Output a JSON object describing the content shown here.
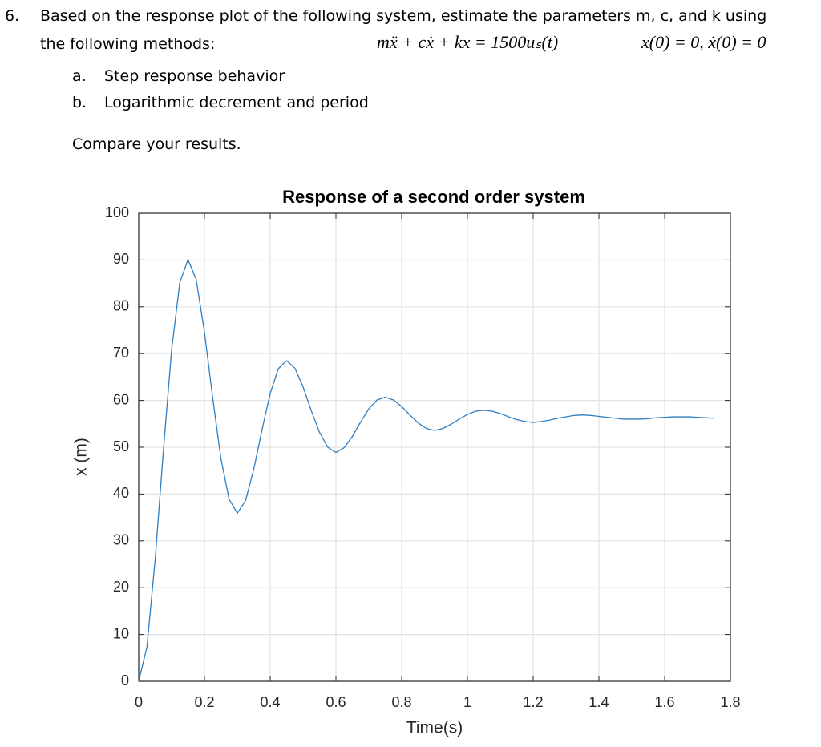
{
  "problem": {
    "number": "6.",
    "line1": "Based on the response plot of the following system, estimate the parameters m, c, and k using",
    "line2": "the following methods:",
    "equation": "mẍ + cẋ + kx = 1500uₛ(t)",
    "initial_conditions": "x(0) = 0,  ẋ(0) = 0",
    "items": [
      {
        "label": "a.",
        "text": "Step response behavior"
      },
      {
        "label": "b.",
        "text": "Logarithmic decrement and period"
      }
    ],
    "closing": "Compare your results."
  },
  "chart_data": {
    "type": "line",
    "title": "Response of a second order system",
    "x_label": "Time(s)",
    "y_label": "x (m)",
    "color": "#2f7ec1",
    "grid": true,
    "xlim": [
      0,
      1.8
    ],
    "xticks": [
      0,
      0.2,
      0.4,
      0.6,
      0.8,
      1,
      1.2,
      1.4,
      1.6,
      1.8
    ],
    "ylim": [
      0,
      100
    ],
    "yticks": [
      0,
      10,
      20,
      30,
      40,
      50,
      60,
      70,
      80,
      90,
      100
    ],
    "x": [
      0,
      0.025,
      0.05,
      0.075,
      0.1,
      0.125,
      0.15,
      0.175,
      0.2,
      0.225,
      0.25,
      0.275,
      0.3,
      0.325,
      0.35,
      0.375,
      0.4,
      0.425,
      0.45,
      0.475,
      0.5,
      0.525,
      0.55,
      0.575,
      0.6,
      0.625,
      0.65,
      0.675,
      0.7,
      0.725,
      0.75,
      0.775,
      0.8,
      0.825,
      0.85,
      0.875,
      0.9,
      0.925,
      0.95,
      0.975,
      1,
      1.025,
      1.05,
      1.075,
      1.1,
      1.125,
      1.15,
      1.175,
      1.2,
      1.225,
      1.25,
      1.275,
      1.3,
      1.325,
      1.35,
      1.375,
      1.4,
      1.425,
      1.45,
      1.475,
      1.5,
      1.525,
      1.55,
      1.575,
      1.6,
      1.625,
      1.65,
      1.675,
      1.7,
      1.725,
      1.75
    ],
    "values": [
      0,
      7.3,
      25.9,
      49.2,
      70.7,
      85.2,
      90.1,
      85.8,
      74.6,
      60.6,
      47.6,
      38.9,
      35.9,
      38.6,
      45.3,
      53.7,
      61.5,
      66.8,
      68.5,
      66.9,
      62.9,
      57.8,
      53.2,
      50.0,
      48.9,
      49.9,
      52.3,
      55.4,
      58.2,
      60.1,
      60.7,
      60.1,
      58.7,
      56.9,
      55.2,
      54.0,
      53.6,
      54.0,
      54.9,
      56.0,
      57.0,
      57.7,
      57.9,
      57.7,
      57.2,
      56.5,
      55.9,
      55.5,
      55.3,
      55.5,
      55.8,
      56.2,
      56.5,
      56.8,
      56.9,
      56.8,
      56.6,
      56.4,
      56.2,
      56.0,
      56.0,
      56.0,
      56.1,
      56.3,
      56.4,
      56.5,
      56.5,
      56.5,
      56.4,
      56.3,
      56.2
    ]
  }
}
